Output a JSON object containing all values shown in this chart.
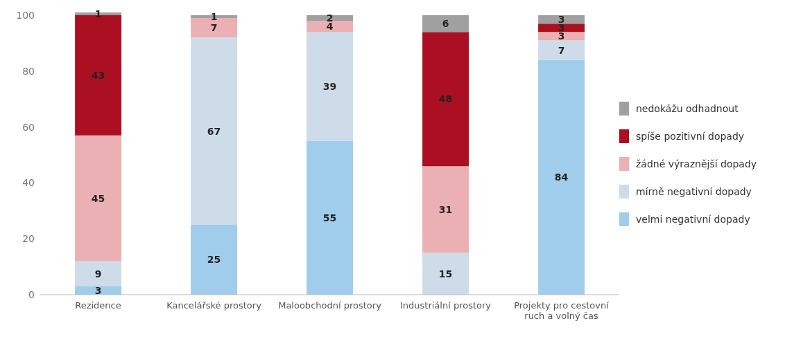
{
  "chart_data": {
    "type": "bar",
    "stacked": true,
    "categories": [
      "Rezidence",
      "Kancelářské prostory",
      "Maloobchodní prostory",
      "Industriální prostory",
      "Projekty pro cestovní ruch a volný čas"
    ],
    "series": [
      {
        "name": "velmi negativní dopady",
        "color": "#a0cdeb",
        "values": [
          3,
          25,
          55,
          null,
          84
        ]
      },
      {
        "name": "mírně negativní dopady",
        "color": "#cddce8",
        "values": [
          9,
          67,
          39,
          15,
          7
        ]
      },
      {
        "name": "žádné výraznější dopady",
        "color": "#eab0b3",
        "values": [
          45,
          7,
          4,
          31,
          3
        ]
      },
      {
        "name": "spíše pozitivní dopady",
        "color": "#ab1022",
        "values": [
          43,
          null,
          null,
          48,
          3
        ]
      },
      {
        "name": "nedokážu odhadnout",
        "color": "#a0a0a0",
        "values": [
          1,
          1,
          2,
          6,
          3
        ]
      }
    ],
    "ylim": [
      0,
      101
    ],
    "yticks": [
      0,
      20,
      40,
      60,
      80,
      100
    ],
    "data_labels": true,
    "legend": "right",
    "grid": false
  }
}
